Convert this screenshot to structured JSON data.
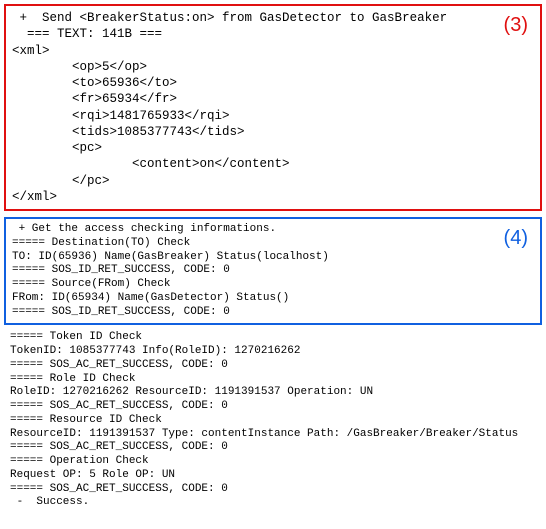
{
  "top_panel": {
    "label": "(3)",
    "label_color": "#e01010",
    "border_color": "#e01010",
    "lines": [
      " +  Send <BreakerStatus:on> from GasDetector to GasBreaker",
      "  === TEXT: 141B ===",
      "<xml>",
      "        <op>5</op>",
      "        <to>65936</to>",
      "        <fr>65934</fr>",
      "        <rqi>1481765933</rqi>",
      "        <tids>1085377743</tids>",
      "        <pc>",
      "                <content>on</content>",
      "        </pc>",
      "</xml>"
    ]
  },
  "mid_panel": {
    "label": "(4)",
    "label_color": "#1060e0",
    "border_color": "#1060e0",
    "lines": [
      " + Get the access checking informations.",
      "===== Destination(TO) Check",
      "TO: ID(65936) Name(GasBreaker) Status(localhost)",
      "===== SOS_ID_RET_SUCCESS, CODE: 0",
      "===== Source(FRom) Check",
      "FRom: ID(65934) Name(GasDetector) Status()",
      "===== SOS_ID_RET_SUCCESS, CODE: 0"
    ]
  },
  "bottom_panel": {
    "lines": [
      "===== Token ID Check",
      "TokenID: 1085377743 Info(RoleID): 1270216262",
      "===== SOS_AC_RET_SUCCESS, CODE: 0",
      "===== Role ID Check",
      "RoleID: 1270216262 ResourceID: 1191391537 Operation: UN",
      "===== SOS_AC_RET_SUCCESS, CODE: 0",
      "===== Resource ID Check",
      "ResourceID: 1191391537 Type: contentInstance Path: /GasBreaker/Breaker/Status",
      "===== SOS_AC_RET_SUCCESS, CODE: 0",
      "===== Operation Check",
      "Request OP: 5 Role OP: UN",
      "===== SOS_AC_RET_SUCCESS, CODE: 0",
      " -  Success."
    ]
  }
}
